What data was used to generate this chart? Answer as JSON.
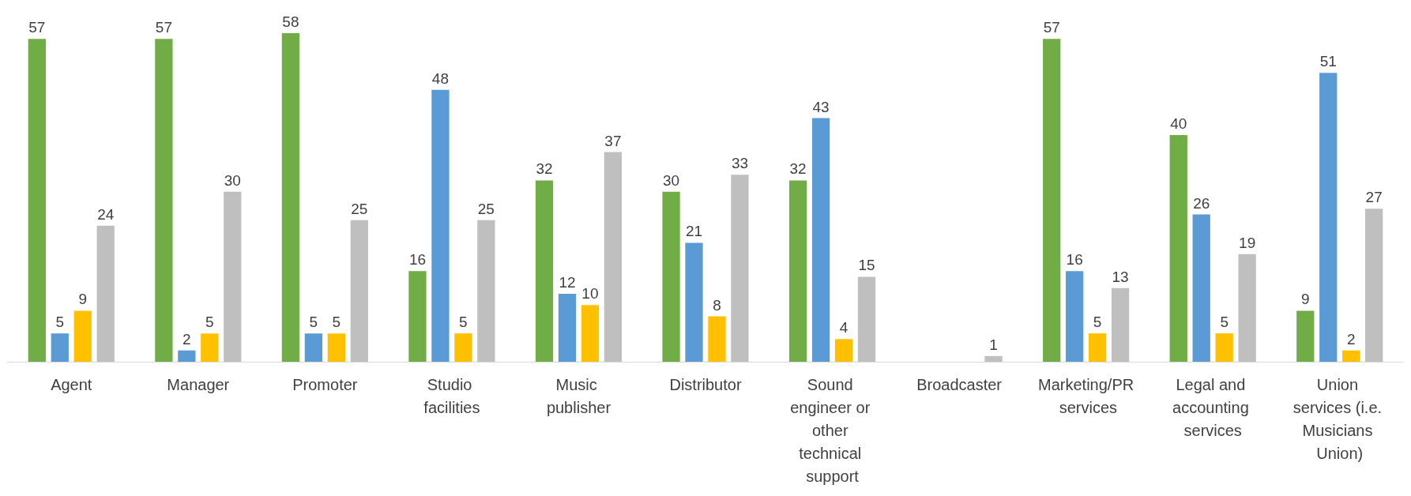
{
  "chart_data": {
    "type": "bar",
    "categories": [
      "Agent",
      "Manager",
      "Promoter",
      "Studio facilities",
      "Music publisher",
      "Distributor",
      "Sound engineer or other technical support",
      "Broadcaster",
      "Marketing/PR services",
      "Legal and accounting services",
      "Union services (i.e. Musicians Union)"
    ],
    "series": [
      {
        "color": "#70ad47",
        "values": [
          57,
          57,
          58,
          16,
          32,
          30,
          32,
          null,
          57,
          40,
          9
        ]
      },
      {
        "color": "#5b9bd5",
        "values": [
          5,
          2,
          5,
          48,
          12,
          21,
          43,
          null,
          16,
          26,
          51
        ]
      },
      {
        "color": "#ffc000",
        "values": [
          9,
          5,
          5,
          5,
          10,
          8,
          4,
          null,
          5,
          5,
          2
        ]
      },
      {
        "color": "#bfbfbf",
        "values": [
          24,
          30,
          25,
          25,
          37,
          33,
          15,
          1,
          13,
          19,
          27
        ]
      }
    ],
    "data_labels": true
  }
}
